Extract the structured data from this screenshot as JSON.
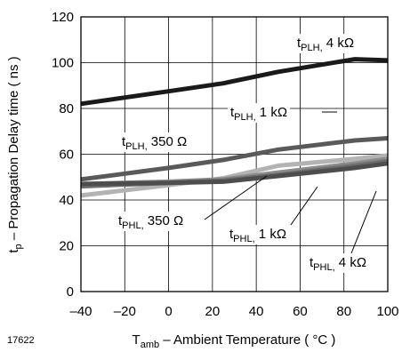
{
  "figure_id": "17622",
  "chart_data": {
    "type": "line",
    "xlabel": {
      "main": "T",
      "sub": "amb",
      "rest": " – Ambient Temperature ( °C )"
    },
    "ylabel": {
      "main": "t",
      "sub": "p",
      "rest": " – Propagation Delay time ( ns )"
    },
    "xlim": [
      -40,
      100
    ],
    "ylim": [
      0,
      120
    ],
    "x_ticks": [
      "–40",
      "–20",
      "0",
      "20",
      "40",
      "60",
      "80",
      "100"
    ],
    "y_ticks": [
      "0",
      "20",
      "40",
      "60",
      "80",
      "100",
      "120"
    ],
    "grid": true,
    "series": [
      {
        "name": "tPLH, 4 kΩ",
        "label": {
          "main": "t",
          "sub": "PLH,",
          "rest": " 4 kΩ"
        },
        "color": "#1a1a1a",
        "x": [
          -40,
          0,
          25,
          50,
          85,
          100
        ],
        "y": [
          82,
          87.5,
          91,
          96,
          101.5,
          101
        ]
      },
      {
        "name": "tPLH, 1 kΩ",
        "label": {
          "main": "t",
          "sub": "PLH,",
          "rest": " 1 kΩ"
        },
        "color": "#5a5a5a",
        "x": [
          -40,
          0,
          25,
          50,
          85,
          100
        ],
        "y": [
          49,
          54,
          57.5,
          62,
          66,
          67
        ]
      },
      {
        "name": "tPLH, 350 Ω",
        "label": {
          "main": "t",
          "sub": "PLH,",
          "rest": " 350 Ω"
        },
        "color": "#b3b3b3",
        "x": [
          -40,
          0,
          25,
          50,
          85,
          100
        ],
        "y": [
          42,
          46.5,
          49.5,
          55,
          58,
          59.5
        ]
      },
      {
        "name": "tPHL, 350 Ω",
        "label": {
          "main": "t",
          "sub": "PHL,",
          "rest": " 350 Ω"
        },
        "color": "#8c8c8c",
        "x": [
          -40,
          0,
          25,
          50,
          85,
          100
        ],
        "y": [
          47,
          48,
          49,
          52,
          56,
          58
        ]
      },
      {
        "name": "tPHL, 1 kΩ",
        "label": {
          "main": "t",
          "sub": "PHL,",
          "rest": " 1 kΩ"
        },
        "color": "#6e6e6e",
        "x": [
          -40,
          0,
          25,
          50,
          85,
          100
        ],
        "y": [
          46,
          47.5,
          48.5,
          51,
          55,
          57
        ]
      },
      {
        "name": "tPHL, 4 kΩ",
        "label": {
          "main": "t",
          "sub": "PHL,",
          "rest": " 4 kΩ"
        },
        "color": "#4d4d4d",
        "x": [
          -40,
          0,
          25,
          50,
          85,
          100
        ],
        "y": [
          47,
          47.5,
          48,
          50.5,
          54,
          56
        ]
      }
    ]
  }
}
